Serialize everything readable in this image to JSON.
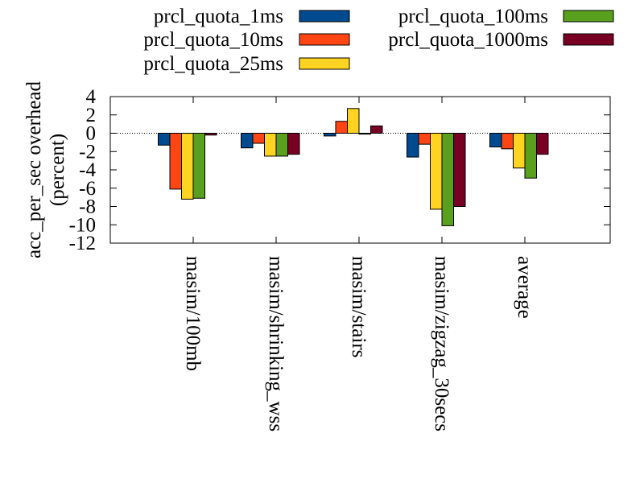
{
  "chart_data": {
    "type": "bar",
    "title": "",
    "xlabel": "",
    "ylabel_lines": [
      "acc_per_sec overhead",
      "(percent)"
    ],
    "ylim": [
      -12,
      4
    ],
    "yticks": [
      4,
      2,
      0,
      -2,
      -4,
      -6,
      -8,
      -10,
      -12
    ],
    "zero_line": "dotted",
    "grid": false,
    "legend_position": "top",
    "categories": [
      "masim/100mb",
      "masim/shrinking_wss",
      "masim/stairs",
      "masim/zigzag_30secs",
      "average"
    ],
    "series": [
      {
        "name": "prcl_quota_1ms",
        "color": "#004a90",
        "values": [
          -1.3,
          -1.6,
          -0.3,
          -2.6,
          -1.5
        ]
      },
      {
        "name": "prcl_quota_10ms",
        "color": "#ff4513",
        "values": [
          -6.1,
          -1.1,
          1.3,
          -1.2,
          -1.7
        ]
      },
      {
        "name": "prcl_quota_25ms",
        "color": "#ffd321",
        "values": [
          -7.2,
          -2.5,
          2.7,
          -8.3,
          -3.8
        ]
      },
      {
        "name": "prcl_quota_100ms",
        "color": "#59a01d",
        "values": [
          -7.1,
          -2.5,
          -0.1,
          -10.1,
          -4.9
        ]
      },
      {
        "name": "prcl_quota_1000ms",
        "color": "#780023",
        "values": [
          -0.2,
          -2.3,
          0.8,
          -8.0,
          -2.3
        ]
      }
    ]
  }
}
